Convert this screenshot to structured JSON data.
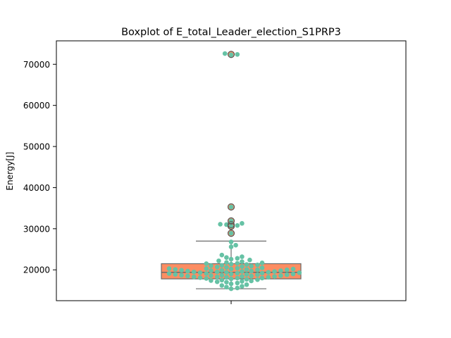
{
  "chart_data": {
    "type": "boxplot",
    "title": "Boxplot of E_total_Leader_election_S1PRP3",
    "xlabel": "",
    "ylabel": "Energy[J]",
    "ylim": [
      12500,
      75700
    ],
    "yticks": [
      20000,
      30000,
      40000,
      50000,
      60000,
      70000
    ],
    "ytick_labels": [
      "20000",
      "30000",
      "40000",
      "50000",
      "60000",
      "70000"
    ],
    "grid": false,
    "legend": "none",
    "colors": {
      "box_fill": "#fc8d62",
      "box_edge": "#6b6b6b",
      "swarm": "#66c2a5",
      "outlier_edge": "#555555"
    },
    "box": {
      "q1": 17800,
      "median": 19400,
      "q3": 21500,
      "whisker_low": 15400,
      "whisker_high": 27000
    },
    "outliers": [
      28900,
      30600,
      31000,
      31900,
      35300,
      72400
    ],
    "swarm_points": [
      72600,
      72400,
      72300,
      35300,
      31900,
      31300,
      31100,
      31000,
      30800,
      30600,
      28900,
      26800,
      26000,
      25600,
      23600,
      23200,
      23000,
      22800,
      22600,
      22400,
      22200,
      22000,
      21800,
      21700,
      21600,
      21500,
      21400,
      21300,
      21200,
      21100,
      21000,
      20900,
      20800,
      20700,
      20600,
      20500,
      20400,
      20300,
      20300,
      20200,
      20200,
      20100,
      20100,
      20000,
      20000,
      19900,
      19900,
      19800,
      19800,
      19700,
      19700,
      19600,
      19600,
      19500,
      19500,
      19400,
      19400,
      19300,
      19300,
      19200,
      19200,
      19100,
      19100,
      19000,
      19000,
      18900,
      18900,
      18800,
      18800,
      18700,
      18700,
      18600,
      18600,
      18500,
      18500,
      18400,
      18400,
      18300,
      18300,
      18200,
      18200,
      18100,
      18000,
      18000,
      17900,
      17800,
      17700,
      17600,
      17500,
      17400,
      17300,
      17200,
      17100,
      17000,
      16800,
      16600,
      16400,
      16200,
      16000,
      15800,
      15600,
      15400
    ]
  }
}
